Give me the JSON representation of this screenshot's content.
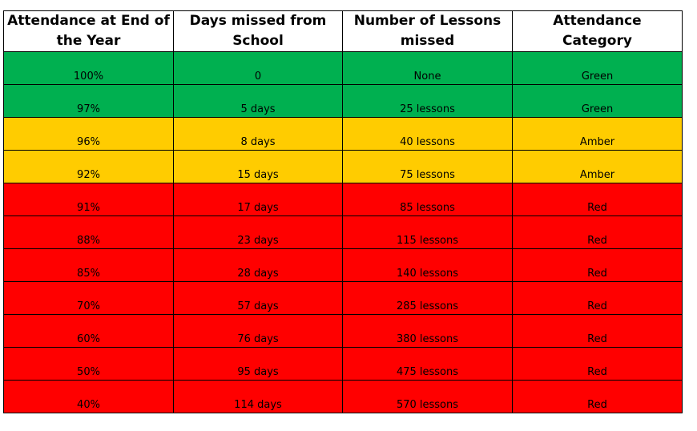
{
  "table": {
    "headers": [
      "Attendance at End of the Year",
      "Days missed from School",
      "Number of Lessons missed",
      "Attendance Category"
    ],
    "rows": [
      {
        "attendance": "100%",
        "days_missed": "0",
        "lessons_missed": "None",
        "category": "Green"
      },
      {
        "attendance": "97%",
        "days_missed": "5 days",
        "lessons_missed": "25 lessons",
        "category": "Green"
      },
      {
        "attendance": "96%",
        "days_missed": "8 days",
        "lessons_missed": "40 lessons",
        "category": "Amber"
      },
      {
        "attendance": "92%",
        "days_missed": "15 days",
        "lessons_missed": "75 lessons",
        "category": "Amber"
      },
      {
        "attendance": "91%",
        "days_missed": "17 days",
        "lessons_missed": "85 lessons",
        "category": "Red"
      },
      {
        "attendance": "88%",
        "days_missed": "23 days",
        "lessons_missed": "115 lessons",
        "category": "Red"
      },
      {
        "attendance": "85%",
        "days_missed": "28 days",
        "lessons_missed": "140 lessons",
        "category": "Red"
      },
      {
        "attendance": "70%",
        "days_missed": "57 days",
        "lessons_missed": "285 lessons",
        "category": "Red"
      },
      {
        "attendance": "60%",
        "days_missed": "76 days",
        "lessons_missed": "380 lessons",
        "category": "Red"
      },
      {
        "attendance": "50%",
        "days_missed": "95 days",
        "lessons_missed": "475 lessons",
        "category": "Red"
      },
      {
        "attendance": "40%",
        "days_missed": "114 days",
        "lessons_missed": "570 lessons",
        "category": "Red"
      }
    ]
  },
  "colors": {
    "Green": "#00b050",
    "Amber": "#ffcc00",
    "Red": "#ff0000",
    "border": "#000000",
    "header_background": "#ffffff"
  }
}
